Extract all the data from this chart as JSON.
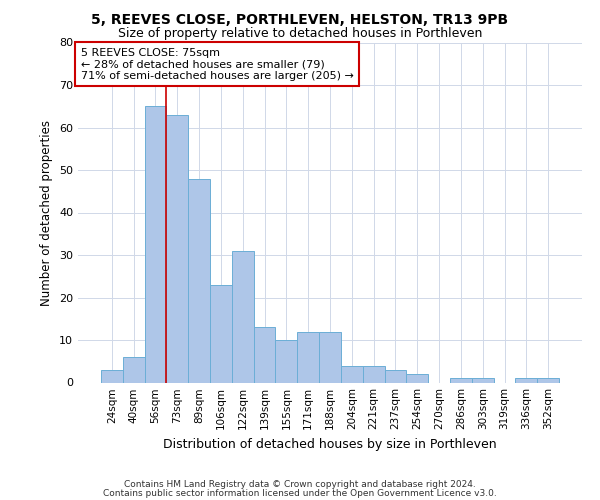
{
  "title1": "5, REEVES CLOSE, PORTHLEVEN, HELSTON, TR13 9PB",
  "title2": "Size of property relative to detached houses in Porthleven",
  "xlabel": "Distribution of detached houses by size in Porthleven",
  "ylabel": "Number of detached properties",
  "categories": [
    "24sqm",
    "40sqm",
    "56sqm",
    "73sqm",
    "89sqm",
    "106sqm",
    "122sqm",
    "139sqm",
    "155sqm",
    "171sqm",
    "188sqm",
    "204sqm",
    "221sqm",
    "237sqm",
    "254sqm",
    "270sqm",
    "286sqm",
    "303sqm",
    "319sqm",
    "336sqm",
    "352sqm"
  ],
  "values": [
    3,
    6,
    65,
    63,
    48,
    23,
    31,
    13,
    10,
    12,
    12,
    4,
    4,
    3,
    2,
    0,
    1,
    1,
    0,
    1,
    1
  ],
  "bar_color": "#aec6e8",
  "bar_edge_color": "#6baed6",
  "annotation_text": "5 REEVES CLOSE: 75sqm\n← 28% of detached houses are smaller (79)\n71% of semi-detached houses are larger (205) →",
  "annotation_box_color": "#ffffff",
  "annotation_box_edge_color": "#cc0000",
  "vline_color": "#cc0000",
  "ylim": [
    0,
    80
  ],
  "yticks": [
    0,
    10,
    20,
    30,
    40,
    50,
    60,
    70,
    80
  ],
  "grid_color": "#d0d8e8",
  "background_color": "#ffffff",
  "footer1": "Contains HM Land Registry data © Crown copyright and database right 2024.",
  "footer2": "Contains public sector information licensed under the Open Government Licence v3.0."
}
